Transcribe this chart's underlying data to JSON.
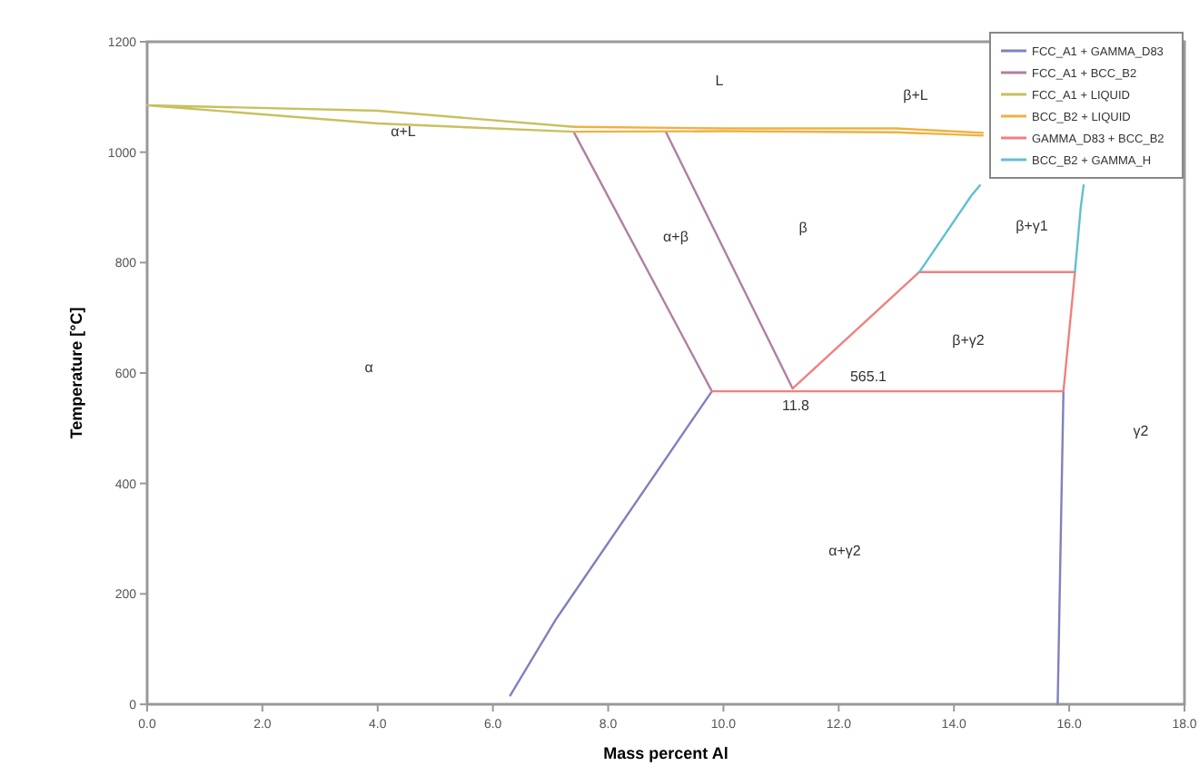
{
  "chart_data": {
    "type": "line",
    "xlabel": "Mass percent Al",
    "ylabel": "Temperature [°C]",
    "xlim": [
      0,
      18
    ],
    "ylim": [
      0,
      1200
    ],
    "xticks": [
      {
        "value": 0,
        "label": "0.0"
      },
      {
        "value": 2,
        "label": "2.0"
      },
      {
        "value": 4,
        "label": "4.0"
      },
      {
        "value": 6,
        "label": "6.0"
      },
      {
        "value": 8,
        "label": "8.0"
      },
      {
        "value": 10,
        "label": "10.0"
      },
      {
        "value": 12,
        "label": "12.0"
      },
      {
        "value": 14,
        "label": "14.0"
      },
      {
        "value": 16,
        "label": "16.0"
      },
      {
        "value": 18,
        "label": "18.0"
      }
    ],
    "yticks": [
      0,
      200,
      400,
      600,
      800,
      1000,
      1200
    ],
    "legend": "top right",
    "marker": "none",
    "line_style": "solid",
    "grid": false,
    "series": [
      {
        "name": "FCC_A1 + GAMMA_D83",
        "color": "#8080c0",
        "x": [
          9.8,
          7.1,
          6.3,
          null,
          15.8,
          15.9
        ],
        "values": [
          567,
          155,
          16,
          null,
          0,
          567
        ]
      },
      {
        "name": "FCC_A1 + BCC_B2",
        "color": "#b080a0",
        "x": [
          7.4,
          9.8,
          null,
          9.0,
          11.2
        ],
        "values": [
          1037,
          567,
          null,
          1037,
          572
        ]
      },
      {
        "name": "FCC_A1 + LIQUID",
        "color": "#c8c060",
        "x": [
          0,
          4,
          7.4,
          null,
          0,
          4,
          7.4
        ],
        "values": [
          1085,
          1075,
          1046,
          null,
          1085,
          1052,
          1037
        ]
      },
      {
        "name": "BCC_B2 + LIQUID",
        "color": "#f0b040",
        "x": [
          7.4,
          10,
          13,
          14.5,
          null,
          7.4,
          10,
          13,
          14.5
        ],
        "values": [
          1046,
          1043,
          1043,
          1035,
          null,
          1037,
          1038,
          1036,
          1030
        ]
      },
      {
        "name": "GAMMA_D83 + BCC_B2",
        "color": "#f08080",
        "x": [
          9.8,
          15.9,
          null,
          13.4,
          16.1,
          null,
          11.2,
          13.4,
          null,
          15.9,
          16.1
        ],
        "values": [
          567,
          567,
          null,
          783,
          783,
          null,
          572,
          783,
          null,
          567,
          783
        ]
      },
      {
        "name": "BCC_B2 + GAMMA_H",
        "color": "#60c0d0",
        "x": [
          13.4,
          14.3,
          14.45,
          null,
          16.1,
          16.2,
          16.25
        ],
        "values": [
          783,
          921,
          940,
          null,
          783,
          900,
          940
        ]
      }
    ],
    "annotations": [
      "L",
      "β+L",
      "α+L",
      "α+β",
      "β",
      "β+γ1",
      "β+γ2",
      "α",
      "α+γ2",
      "γ2",
      "11.8",
      "565.1"
    ]
  }
}
